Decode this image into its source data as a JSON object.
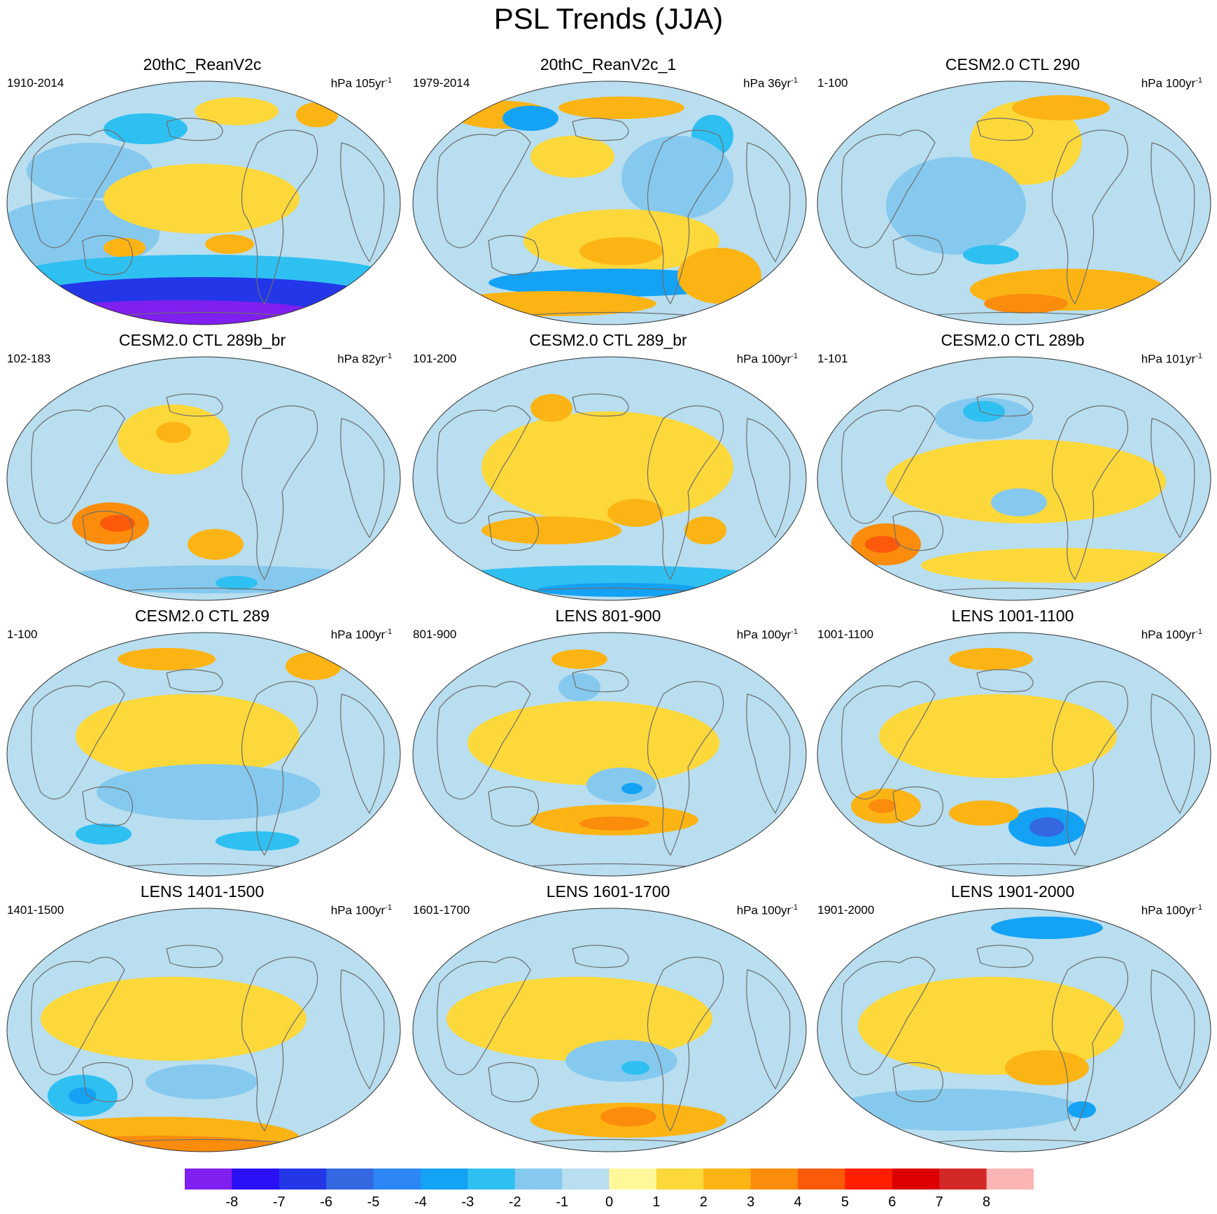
{
  "title": "PSL Trends (JJA)",
  "units_prefix": "hPa",
  "panels": [
    {
      "title": "20thC_ReanV2c",
      "period": "1910-2014",
      "units_main": "hPa 105yr",
      "units_sup": "-1"
    },
    {
      "title": "20thC_ReanV2c_1",
      "period": "1979-2014",
      "units_main": "hPa 36yr",
      "units_sup": "-1"
    },
    {
      "title": "CESM2.0 CTL 290",
      "period": "1-100",
      "units_main": "hPa 100yr",
      "units_sup": "-1"
    },
    {
      "title": "CESM2.0 CTL 289b_br",
      "period": "102-183",
      "units_main": "hPa 82yr",
      "units_sup": "-1"
    },
    {
      "title": "CESM2.0 CTL 289_br",
      "period": "101-200",
      "units_main": "hPa 100yr",
      "units_sup": "-1"
    },
    {
      "title": "CESM2.0 CTL 289b",
      "period": "1-101",
      "units_main": "hPa 101yr",
      "units_sup": "-1"
    },
    {
      "title": "CESM2.0 CTL 289",
      "period": "1-100",
      "units_main": "hPa 100yr",
      "units_sup": "-1"
    },
    {
      "title": "LENS 801-900",
      "period": "801-900",
      "units_main": "hPa 100yr",
      "units_sup": "-1"
    },
    {
      "title": "LENS 1001-1100",
      "period": "1001-1100",
      "units_main": "hPa 100yr",
      "units_sup": "-1"
    },
    {
      "title": "LENS 1401-1500",
      "period": "1401-1500",
      "units_main": "hPa 100yr",
      "units_sup": "-1"
    },
    {
      "title": "LENS 1601-1700",
      "period": "1601-1700",
      "units_main": "hPa 100yr",
      "units_sup": "-1"
    },
    {
      "title": "LENS 1901-2000",
      "period": "1901-2000",
      "units_main": "hPa 100yr",
      "units_sup": "-1"
    }
  ],
  "colorbar": {
    "colors": [
      "#7f1ff0",
      "#2a10f5",
      "#2336e8",
      "#3368e0",
      "#2c86f5",
      "#14a2f5",
      "#2fc0f2",
      "#86c9ee",
      "#b8def0",
      "#fff89a",
      "#fcd83a",
      "#fcb414",
      "#fb8c0c",
      "#fc5a0a",
      "#ff1e00",
      "#dd0000",
      "#d42828",
      "#fcb4b4"
    ],
    "labels": [
      "-8",
      "-7",
      "-6",
      "-5",
      "-4",
      "-3",
      "-2",
      "-1",
      "0",
      "1",
      "2",
      "3",
      "4",
      "5",
      "6",
      "7",
      "8"
    ]
  },
  "map_colors": {
    "ocean_base": "#b8def0",
    "land_outline": "#6e6e6e",
    "neutral_pos": "#fff89a",
    "pos1": "#fcd83a",
    "pos2": "#fcb414",
    "pos3": "#fb8c0c",
    "pos4": "#fc5a0a",
    "neg1": "#86c9ee",
    "neg2": "#2fc0f2",
    "neg3": "#14a2f5",
    "neg4": "#2c86f5",
    "neg5": "#3368e0",
    "neg6": "#2336e8",
    "neg7": "#2a10f5",
    "neg8": "#7f1ff0"
  }
}
